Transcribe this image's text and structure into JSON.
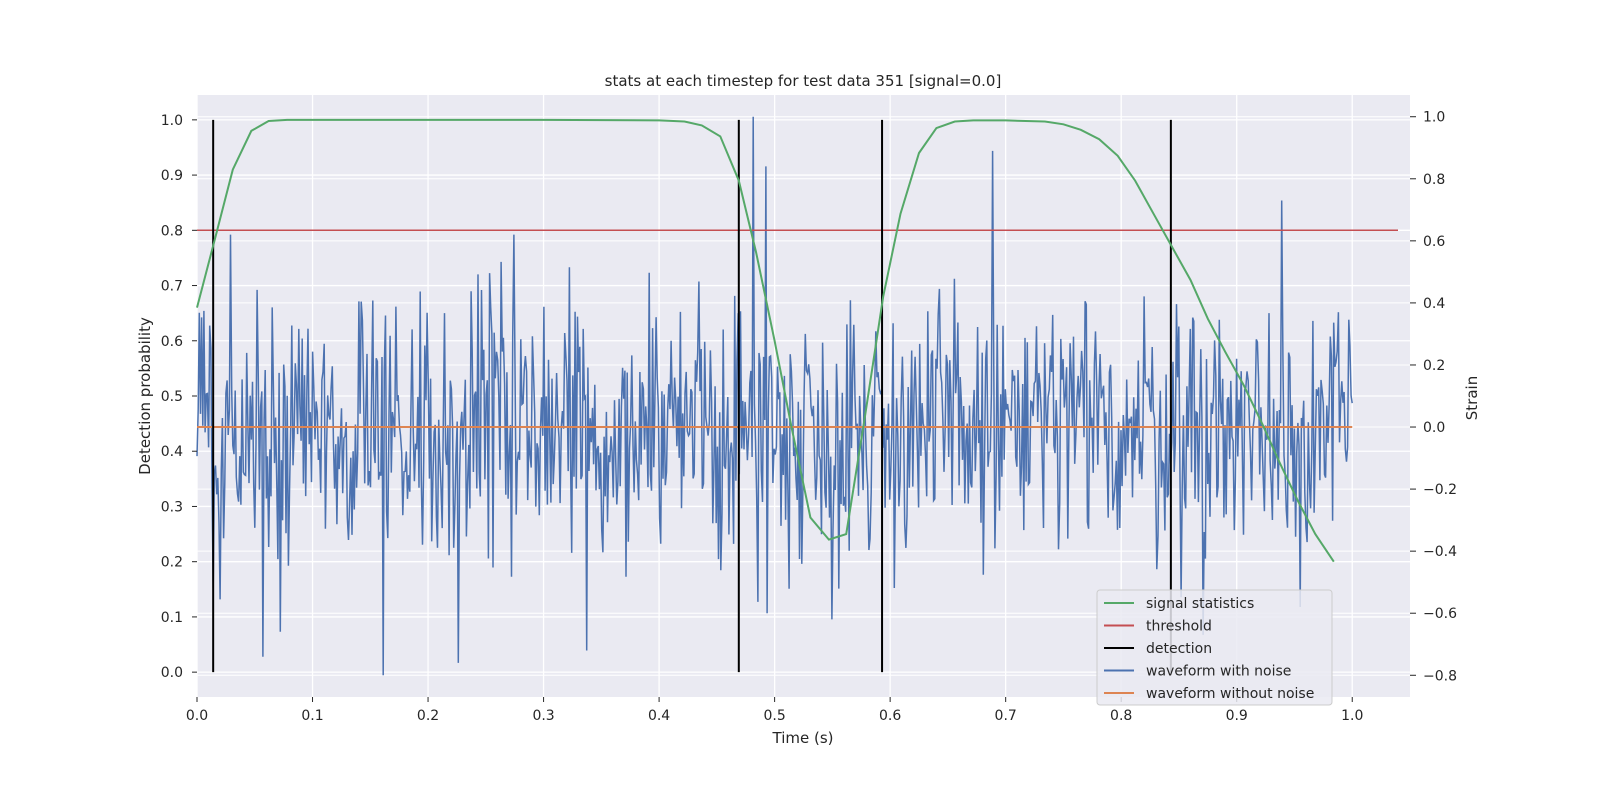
{
  "chart_data": {
    "type": "line",
    "title": "stats at each timestep for test data 351 [signal=0.0]",
    "xlabel": "Time (s)",
    "ylabel_left": "Detection probability",
    "ylabel_right": "Strain",
    "xlim": [
      0.0,
      1.05
    ],
    "ylim_left": [
      -0.045,
      1.045
    ],
    "ylim_right": [
      -0.87,
      1.07
    ],
    "x_ticks": [
      0.0,
      0.1,
      0.2,
      0.3,
      0.4,
      0.5,
      0.6,
      0.7,
      0.8,
      0.9,
      1.0
    ],
    "x_tick_labels": [
      "0.0",
      "0.1",
      "0.2",
      "0.3",
      "0.4",
      "0.5",
      "0.6",
      "0.7",
      "0.8",
      "0.9",
      "1.0"
    ],
    "y_left_ticks": [
      0.0,
      0.1,
      0.2,
      0.3,
      0.4,
      0.5,
      0.6,
      0.7,
      0.8,
      0.9,
      1.0
    ],
    "y_left_tick_labels": [
      "0.0",
      "0.1",
      "0.2",
      "0.3",
      "0.4",
      "0.5",
      "0.6",
      "0.7",
      "0.8",
      "0.9",
      "1.0"
    ],
    "y_right_ticks": [
      -0.8,
      -0.6,
      -0.4,
      -0.2,
      0.0,
      0.2,
      0.4,
      0.6,
      0.8,
      1.0
    ],
    "y_right_tick_labels": [
      "−0.8",
      "−0.6",
      "−0.4",
      "−0.2",
      "0.0",
      "0.2",
      "0.4",
      "0.6",
      "0.8",
      "1.0"
    ],
    "grid": true,
    "legend_position": "lower-right",
    "legend": [
      {
        "label": "signal statistics",
        "color": "#55a868"
      },
      {
        "label": "threshold",
        "color": "#c44e52"
      },
      {
        "label": "detection",
        "color": "#000000"
      },
      {
        "label": "waveform with noise",
        "color": "#4c72b0"
      },
      {
        "label": "waveform without noise",
        "color": "#dd8452"
      }
    ],
    "signal_statistics": {
      "axis": "left",
      "color": "#55a868",
      "x": [
        0.0,
        0.015,
        0.031,
        0.047,
        0.062,
        0.078,
        0.1,
        0.2,
        0.3,
        0.4,
        0.422,
        0.437,
        0.453,
        0.469,
        0.484,
        0.5,
        0.515,
        0.531,
        0.547,
        0.562,
        0.578,
        0.594,
        0.609,
        0.625,
        0.64,
        0.656,
        0.672,
        0.7,
        0.734,
        0.75,
        0.765,
        0.781,
        0.797,
        0.812,
        0.828,
        0.844,
        0.86,
        0.875,
        0.89,
        0.906,
        0.922,
        0.937,
        0.953,
        0.968,
        0.984
      ],
      "y": [
        0.66,
        0.78,
        0.91,
        0.98,
        0.998,
        1.0,
        1.0,
        1.0,
        1.0,
        0.999,
        0.997,
        0.99,
        0.97,
        0.89,
        0.76,
        0.6,
        0.44,
        0.28,
        0.24,
        0.25,
        0.46,
        0.68,
        0.83,
        0.94,
        0.985,
        0.997,
        0.999,
        0.999,
        0.997,
        0.992,
        0.982,
        0.965,
        0.935,
        0.89,
        0.83,
        0.77,
        0.71,
        0.64,
        0.58,
        0.52,
        0.45,
        0.38,
        0.31,
        0.25,
        0.2
      ]
    },
    "threshold": {
      "axis": "left",
      "color": "#c44e52",
      "value": 0.8
    },
    "detection": {
      "axis": "left",
      "color": "#000000",
      "x": [
        0.014,
        0.469,
        0.593,
        0.843
      ],
      "y_range": [
        0.0,
        1.0
      ]
    },
    "waveform_with_noise": {
      "axis": "right",
      "color": "#4c72b0",
      "description_points": 1000,
      "peaks": [
        {
          "x": 0.014,
          "y": -0.52
        },
        {
          "x": 0.029,
          "y": 0.62
        },
        {
          "x": 0.057,
          "y": -0.74
        },
        {
          "x": 0.072,
          "y": -0.66
        },
        {
          "x": 0.161,
          "y": -0.8
        },
        {
          "x": 0.226,
          "y": -0.76
        },
        {
          "x": 0.274,
          "y": 0.62
        },
        {
          "x": 0.337,
          "y": -0.72
        },
        {
          "x": 0.481,
          "y": 1.0
        },
        {
          "x": 0.492,
          "y": 0.84
        },
        {
          "x": 0.493,
          "y": -0.6
        },
        {
          "x": 0.55,
          "y": -0.62
        },
        {
          "x": 0.689,
          "y": 0.89
        },
        {
          "x": 0.871,
          "y": -0.67
        },
        {
          "x": 0.939,
          "y": 0.73
        },
        {
          "x": 0.955,
          "y": -0.58
        }
      ]
    },
    "waveform_without_noise": {
      "axis": "right",
      "color": "#dd8452",
      "x": [
        0.0,
        1.0
      ],
      "y": [
        0.0,
        0.0
      ]
    }
  }
}
